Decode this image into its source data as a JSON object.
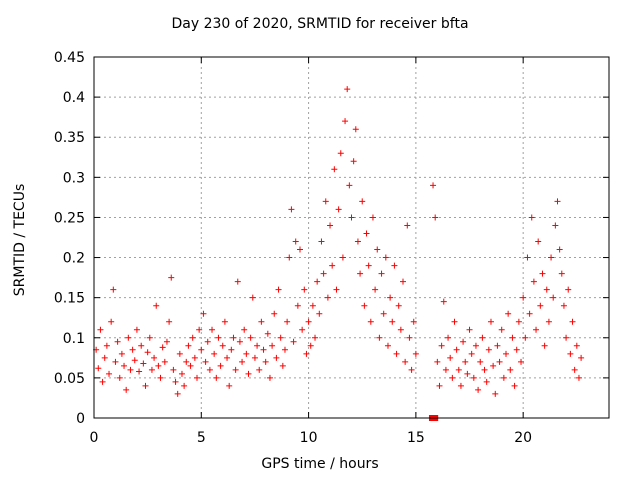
{
  "chart_data": {
    "type": "scatter",
    "title": "Day 230 of 2020, SRMTID for receiver bfta",
    "xlabel": "GPS time / hours",
    "ylabel": "SRMTID / TECUs",
    "xlim": [
      0,
      24
    ],
    "ylim": [
      0,
      0.45
    ],
    "xticks": [
      "0",
      "5",
      "10",
      "15",
      "20"
    ],
    "yticks": [
      "0",
      "0.05",
      "0.1",
      "0.15",
      "0.2",
      "0.25",
      "0.3",
      "0.35",
      "0.4",
      "0.45"
    ],
    "grid": true,
    "marker": "+",
    "color": "#ff0000",
    "series": [
      {
        "points": [
          [
            0.1,
            0.085
          ],
          [
            0.2,
            0.062
          ],
          [
            0.3,
            0.11
          ],
          [
            0.4,
            0.045
          ],
          [
            0.5,
            0.075
          ],
          [
            0.6,
            0.09
          ],
          [
            0.7,
            0.055
          ],
          [
            0.8,
            0.12
          ],
          [
            0.9,
            0.16
          ],
          [
            1.0,
            0.07
          ],
          [
            1.1,
            0.095
          ],
          [
            1.2,
            0.05
          ],
          [
            1.3,
            0.08
          ],
          [
            1.4,
            0.065
          ],
          [
            1.5,
            0.035
          ],
          [
            1.6,
            0.1
          ],
          [
            1.7,
            0.06
          ],
          [
            1.8,
            0.085
          ],
          [
            1.9,
            0.072
          ],
          [
            2.0,
            0.11
          ],
          [
            2.1,
            0.058
          ],
          [
            2.2,
            0.09
          ],
          [
            2.3,
            0.068
          ],
          [
            2.4,
            0.04
          ],
          [
            2.5,
            0.082
          ],
          [
            2.6,
            0.1
          ],
          [
            2.7,
            0.06
          ],
          [
            2.8,
            0.075
          ],
          [
            2.9,
            0.14
          ],
          [
            3.0,
            0.065
          ],
          [
            3.1,
            0.05
          ],
          [
            3.2,
            0.088
          ],
          [
            3.3,
            0.07
          ],
          [
            3.4,
            0.095
          ],
          [
            3.5,
            0.12
          ],
          [
            3.6,
            0.175
          ],
          [
            3.7,
            0.06
          ],
          [
            3.8,
            0.045
          ],
          [
            3.9,
            0.03
          ],
          [
            4.0,
            0.08
          ],
          [
            4.1,
            0.055
          ],
          [
            4.2,
            0.04
          ],
          [
            4.3,
            0.07
          ],
          [
            4.4,
            0.09
          ],
          [
            4.5,
            0.065
          ],
          [
            4.6,
            0.1
          ],
          [
            4.7,
            0.075
          ],
          [
            4.8,
            0.05
          ],
          [
            4.9,
            0.11
          ],
          [
            5.0,
            0.085
          ],
          [
            5.1,
            0.13
          ],
          [
            5.2,
            0.07
          ],
          [
            5.3,
            0.095
          ],
          [
            5.4,
            0.06
          ],
          [
            5.5,
            0.11
          ],
          [
            5.6,
            0.08
          ],
          [
            5.7,
            0.05
          ],
          [
            5.8,
            0.1
          ],
          [
            5.9,
            0.065
          ],
          [
            6.0,
            0.09
          ],
          [
            6.1,
            0.12
          ],
          [
            6.2,
            0.075
          ],
          [
            6.3,
            0.04
          ],
          [
            6.4,
            0.085
          ],
          [
            6.5,
            0.1
          ],
          [
            6.6,
            0.06
          ],
          [
            6.7,
            0.17
          ],
          [
            6.8,
            0.095
          ],
          [
            6.9,
            0.07
          ],
          [
            7.0,
            0.11
          ],
          [
            7.1,
            0.08
          ],
          [
            7.2,
            0.055
          ],
          [
            7.3,
            0.1
          ],
          [
            7.4,
            0.15
          ],
          [
            7.5,
            0.075
          ],
          [
            7.6,
            0.09
          ],
          [
            7.7,
            0.06
          ],
          [
            7.8,
            0.12
          ],
          [
            7.9,
            0.085
          ],
          [
            8.0,
            0.07
          ],
          [
            8.1,
            0.105
          ],
          [
            8.2,
            0.05
          ],
          [
            8.3,
            0.09
          ],
          [
            8.4,
            0.13
          ],
          [
            8.5,
            0.075
          ],
          [
            8.6,
            0.16
          ],
          [
            8.7,
            0.1
          ],
          [
            8.8,
            0.065
          ],
          [
            8.9,
            0.085
          ],
          [
            9.0,
            0.12
          ],
          [
            9.1,
            0.2
          ],
          [
            9.2,
            0.26
          ],
          [
            9.3,
            0.095
          ],
          [
            9.4,
            0.22
          ],
          [
            9.5,
            0.14
          ],
          [
            9.6,
            0.21
          ],
          [
            9.7,
            0.11
          ],
          [
            9.8,
            0.16
          ],
          [
            9.9,
            0.08
          ],
          [
            10.0,
            0.12
          ],
          [
            10.1,
            0.09
          ],
          [
            10.2,
            0.14
          ],
          [
            10.3,
            0.1
          ],
          [
            10.4,
            0.17
          ],
          [
            10.5,
            0.13
          ],
          [
            10.6,
            0.22
          ],
          [
            10.7,
            0.18
          ],
          [
            10.8,
            0.27
          ],
          [
            10.9,
            0.15
          ],
          [
            11.0,
            0.24
          ],
          [
            11.1,
            0.19
          ],
          [
            11.2,
            0.31
          ],
          [
            11.3,
            0.16
          ],
          [
            11.4,
            0.26
          ],
          [
            11.5,
            0.33
          ],
          [
            11.6,
            0.2
          ],
          [
            11.7,
            0.37
          ],
          [
            11.8,
            0.41
          ],
          [
            11.9,
            0.29
          ],
          [
            12.0,
            0.25
          ],
          [
            12.1,
            0.32
          ],
          [
            12.2,
            0.36
          ],
          [
            12.3,
            0.22
          ],
          [
            12.4,
            0.18
          ],
          [
            12.5,
            0.27
          ],
          [
            12.6,
            0.14
          ],
          [
            12.7,
            0.23
          ],
          [
            12.8,
            0.19
          ],
          [
            12.9,
            0.12
          ],
          [
            13.0,
            0.25
          ],
          [
            13.1,
            0.16
          ],
          [
            13.2,
            0.21
          ],
          [
            13.3,
            0.1
          ],
          [
            13.4,
            0.18
          ],
          [
            13.5,
            0.13
          ],
          [
            13.6,
            0.2
          ],
          [
            13.7,
            0.09
          ],
          [
            13.8,
            0.15
          ],
          [
            13.9,
            0.12
          ],
          [
            14.0,
            0.19
          ],
          [
            14.1,
            0.08
          ],
          [
            14.2,
            0.14
          ],
          [
            14.3,
            0.11
          ],
          [
            14.4,
            0.17
          ],
          [
            14.5,
            0.07
          ],
          [
            14.6,
            0.24
          ],
          [
            14.7,
            0.1
          ],
          [
            14.8,
            0.06
          ],
          [
            14.9,
            0.12
          ],
          [
            15.0,
            0.08
          ],
          [
            15.8,
            0.29
          ],
          [
            15.9,
            0.25
          ],
          [
            16.0,
            0.07
          ],
          [
            16.1,
            0.04
          ],
          [
            16.2,
            0.09
          ],
          [
            16.3,
            0.145
          ],
          [
            16.4,
            0.06
          ],
          [
            16.5,
            0.1
          ],
          [
            16.6,
            0.075
          ],
          [
            16.7,
            0.05
          ],
          [
            16.8,
            0.12
          ],
          [
            16.9,
            0.085
          ],
          [
            17.0,
            0.06
          ],
          [
            17.1,
            0.04
          ],
          [
            17.2,
            0.095
          ],
          [
            17.3,
            0.07
          ],
          [
            17.4,
            0.055
          ],
          [
            17.5,
            0.11
          ],
          [
            17.6,
            0.08
          ],
          [
            17.7,
            0.05
          ],
          [
            17.8,
            0.09
          ],
          [
            17.9,
            0.035
          ],
          [
            18.0,
            0.07
          ],
          [
            18.1,
            0.1
          ],
          [
            18.2,
            0.06
          ],
          [
            18.3,
            0.045
          ],
          [
            18.4,
            0.085
          ],
          [
            18.5,
            0.12
          ],
          [
            18.6,
            0.065
          ],
          [
            18.7,
            0.03
          ],
          [
            18.8,
            0.09
          ],
          [
            18.9,
            0.07
          ],
          [
            19.0,
            0.11
          ],
          [
            19.1,
            0.05
          ],
          [
            19.2,
            0.08
          ],
          [
            19.3,
            0.13
          ],
          [
            19.4,
            0.06
          ],
          [
            19.5,
            0.1
          ],
          [
            19.6,
            0.04
          ],
          [
            19.7,
            0.085
          ],
          [
            19.8,
            0.12
          ],
          [
            19.9,
            0.07
          ],
          [
            20.0,
            0.15
          ],
          [
            20.1,
            0.1
          ],
          [
            20.2,
            0.2
          ],
          [
            20.3,
            0.13
          ],
          [
            20.4,
            0.25
          ],
          [
            20.5,
            0.17
          ],
          [
            20.6,
            0.11
          ],
          [
            20.7,
            0.22
          ],
          [
            20.8,
            0.14
          ],
          [
            20.9,
            0.18
          ],
          [
            21.0,
            0.09
          ],
          [
            21.1,
            0.16
          ],
          [
            21.2,
            0.12
          ],
          [
            21.3,
            0.2
          ],
          [
            21.4,
            0.15
          ],
          [
            21.5,
            0.24
          ],
          [
            21.6,
            0.27
          ],
          [
            21.7,
            0.21
          ],
          [
            21.8,
            0.18
          ],
          [
            21.9,
            0.14
          ],
          [
            22.0,
            0.1
          ],
          [
            22.1,
            0.16
          ],
          [
            22.2,
            0.08
          ],
          [
            22.3,
            0.12
          ],
          [
            22.4,
            0.06
          ],
          [
            22.5,
            0.09
          ],
          [
            22.6,
            0.05
          ],
          [
            22.7,
            0.075
          ]
        ]
      }
    ],
    "zero_points": [
      15.75,
      15.9
    ]
  }
}
